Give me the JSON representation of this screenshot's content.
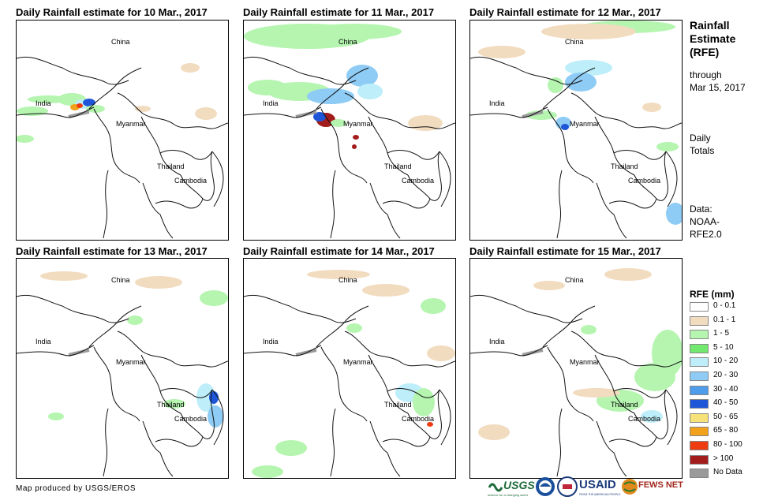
{
  "panels": [
    {
      "title": "Daily Rainfall estimate for 10 Mar., 2017"
    },
    {
      "title": "Daily Rainfall estimate for 11 Mar., 2017"
    },
    {
      "title": "Daily Rainfall estimate for 12 Mar., 2017"
    },
    {
      "title": "Daily Rainfall estimate for 13 Mar., 2017"
    },
    {
      "title": "Daily Rainfall estimate for 14 Mar., 2017"
    },
    {
      "title": "Daily Rainfall estimate for 15 Mar., 2017"
    }
  ],
  "places": {
    "china": "China",
    "india": "India",
    "myanmar": "Myanmar",
    "thailand": "Thailand",
    "cambodia": "Cambodia"
  },
  "side": {
    "title_lines": [
      "Rainfall",
      "Estimate",
      "(RFE)"
    ],
    "through_lines": [
      "through",
      "Mar 15, 2017"
    ],
    "totals_lines": [
      "Daily",
      "Totals"
    ],
    "data_lines": [
      "Data:",
      "NOAA-",
      "RFE2.0"
    ]
  },
  "legend": {
    "title": "RFE (mm)",
    "items": [
      {
        "label": "0 - 0.1",
        "color": "#ffffff"
      },
      {
        "label": "0.1 - 1",
        "color": "#f2dcc0"
      },
      {
        "label": "1 - 5",
        "color": "#b5f5b0"
      },
      {
        "label": "5 - 10",
        "color": "#72e870"
      },
      {
        "label": "10 - 20",
        "color": "#bdeefa"
      },
      {
        "label": "20 - 30",
        "color": "#8ecbf5"
      },
      {
        "label": "30 - 40",
        "color": "#4f9ceb"
      },
      {
        "label": "40 - 50",
        "color": "#1f56d8"
      },
      {
        "label": "50 - 65",
        "color": "#f7e27a"
      },
      {
        "label": "65 - 80",
        "color": "#f2a21a"
      },
      {
        "label": "80 - 100",
        "color": "#ee3b10"
      },
      {
        "label": "> 100",
        "color": "#a31c1c"
      },
      {
        "label": "No Data",
        "color": "#9a9a9a"
      }
    ]
  },
  "credit": "Map produced by USGS/EROS",
  "logos": {
    "usgs": "USGS",
    "usgs_tagline": "science for a changing world",
    "usaid": "USAID",
    "usaid_tagline": "FROM THE AMERICAN PEOPLE",
    "fewsnet": "FEWS NET"
  }
}
